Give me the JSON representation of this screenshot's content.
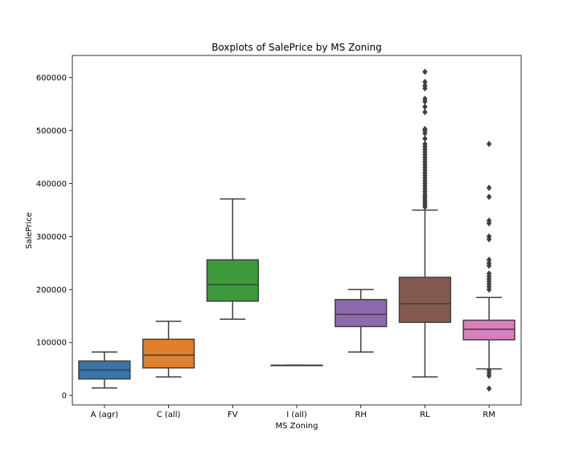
{
  "chart_data": {
    "type": "boxplot",
    "title": "Boxplots of SalePrice by MS Zoning",
    "xlabel": "MS Zoning",
    "ylabel": "SalePrice",
    "ylim": [
      -18000,
      642000
    ],
    "yticks": [
      0,
      100000,
      200000,
      300000,
      400000,
      500000,
      600000
    ],
    "ytick_labels": [
      "0",
      "100000",
      "200000",
      "300000",
      "400000",
      "500000",
      "600000"
    ],
    "categories": [
      "A (agr)",
      "C (all)",
      "FV",
      "I (all)",
      "RH",
      "RL",
      "RM"
    ],
    "colors": [
      "#3a75a8",
      "#e07f2c",
      "#3c9a3c",
      "#c63f3f",
      "#8e6aad",
      "#845a4f",
      "#d97fbd"
    ],
    "edge_color": "#3f3f3f",
    "boxes": [
      {
        "whislo": 14000,
        "q1": 31000,
        "med": 48000,
        "q3": 65000,
        "whishi": 82000,
        "fliers": []
      },
      {
        "whislo": 35000,
        "q1": 52000,
        "med": 76000,
        "q3": 106000,
        "whishi": 140000,
        "fliers": []
      },
      {
        "whislo": 144000,
        "q1": 178000,
        "med": 209000,
        "q3": 256000,
        "whishi": 371000,
        "fliers": []
      },
      {
        "whislo": 57000,
        "q1": 57000,
        "med": 57000,
        "q3": 57000,
        "whishi": 57000,
        "fliers": []
      },
      {
        "whislo": 82000,
        "q1": 130000,
        "med": 153000,
        "q3": 181000,
        "whishi": 200000,
        "fliers": []
      },
      {
        "whislo": 35000,
        "q1": 138000,
        "med": 173000,
        "q3": 223000,
        "whishi": 350000,
        "fliers": [
          356000,
          360000,
          364000,
          368000,
          372000,
          376000,
          380000,
          385000,
          390000,
          395000,
          400000,
          405000,
          410000,
          415000,
          420000,
          425000,
          430000,
          435000,
          440000,
          445000,
          450000,
          455000,
          460000,
          465000,
          470000,
          475000,
          485000,
          495000,
          500000,
          503000,
          535000,
          545000,
          555000,
          560000,
          580000,
          585000,
          592000,
          611000
        ]
      },
      {
        "whislo": 50000,
        "q1": 105000,
        "med": 125000,
        "q3": 142000,
        "whishi": 185000,
        "fliers": [
          13000,
          37000,
          42000,
          47000,
          200000,
          205000,
          210000,
          215000,
          220000,
          225000,
          230000,
          245000,
          250000,
          256000,
          295000,
          300000,
          325000,
          330000,
          375000,
          392000,
          475000
        ]
      }
    ]
  }
}
